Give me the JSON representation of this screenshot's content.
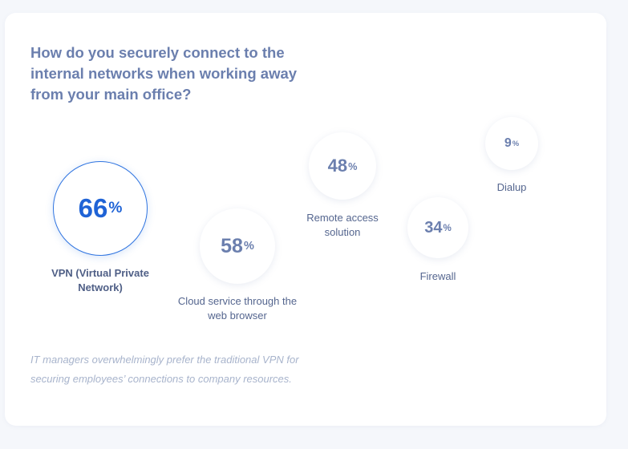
{
  "title": "How do you securely connect to the internal networks when working away from your main office?",
  "note": "IT managers overwhelmingly prefer the traditional VPN for securing employees’ connections to company resources.",
  "colors": {
    "highlight": "#1f63d6",
    "value_text": "#6b7fae",
    "label_text": "#55668f",
    "note_text": "#a8b4cc"
  },
  "chart_data": {
    "type": "bubble",
    "title": "How do you securely connect to the internal networks when working away from your main office?",
    "unit": "%",
    "categories": [
      "VPN (Virtual Private Network)",
      "Cloud service through the web browser",
      "Remote access solution",
      "Firewall",
      "Dialup"
    ],
    "values": [
      66,
      58,
      48,
      34,
      9
    ],
    "highlighted": "VPN (Virtual Private Network)"
  }
}
